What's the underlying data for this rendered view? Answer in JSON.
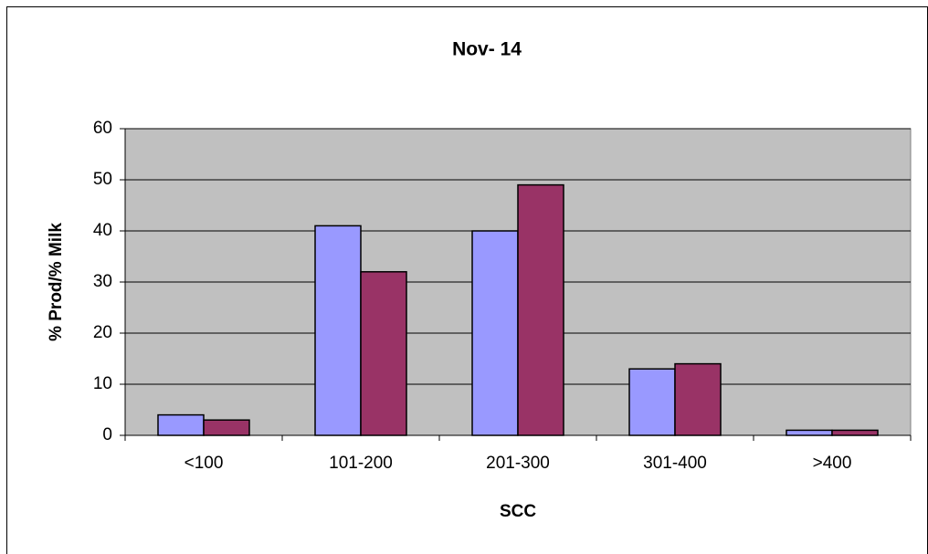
{
  "chart_data": {
    "type": "bar",
    "title": "Nov- 14",
    "x_label": "SCC",
    "y_label": "% Prod/% Milk",
    "categories": [
      "<100",
      "101-200",
      "201-300",
      "301-400",
      ">400"
    ],
    "series": [
      {
        "color": "#9999ff",
        "values": [
          4,
          41,
          40,
          13,
          1
        ]
      },
      {
        "color": "#993366",
        "values": [
          3,
          32,
          49,
          14,
          1
        ]
      }
    ],
    "ylim": [
      0,
      60
    ],
    "yticks": [
      0,
      10,
      20,
      30,
      40,
      50,
      60
    ],
    "grid": true,
    "plot_background": "#c0c0c0"
  }
}
